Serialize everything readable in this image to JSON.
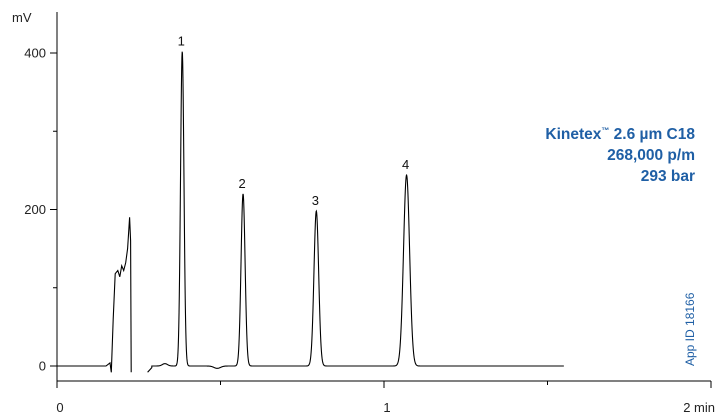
{
  "chart_data": {
    "type": "line",
    "ylabel": "mV",
    "xlabel_unit": "min",
    "xlim": [
      0,
      2
    ],
    "ylim": [
      -10,
      420
    ],
    "x_ticks": [
      {
        "value": 0,
        "label": "0"
      },
      {
        "value": 1,
        "label": "1"
      },
      {
        "value": 2,
        "label": "2 min"
      }
    ],
    "x_minor_ticks": [
      0.5,
      1.5
    ],
    "y_ticks": [
      {
        "value": 0,
        "label": "0"
      },
      {
        "value": 200,
        "label": "200"
      },
      {
        "value": 400,
        "label": "400"
      }
    ],
    "y_minor_ticks": [
      100,
      300
    ],
    "peaks": [
      {
        "label": "1",
        "time": 0.383,
        "height": 402
      },
      {
        "label": "2",
        "time": 0.569,
        "height": 220
      },
      {
        "label": "3",
        "time": 0.793,
        "height": 198
      },
      {
        "label": "4",
        "time": 1.069,
        "height": 244
      }
    ],
    "trace_end": 1.55,
    "line_color": "#000000"
  },
  "annotation": {
    "line1_main": "Kinetex",
    "line1_tm": "™",
    "line1_rest": " 2.6 µm C18",
    "line2": "268,000 p/m",
    "line3": "293 bar",
    "color": "#1f5fa5"
  },
  "app_id": "App ID 18166"
}
